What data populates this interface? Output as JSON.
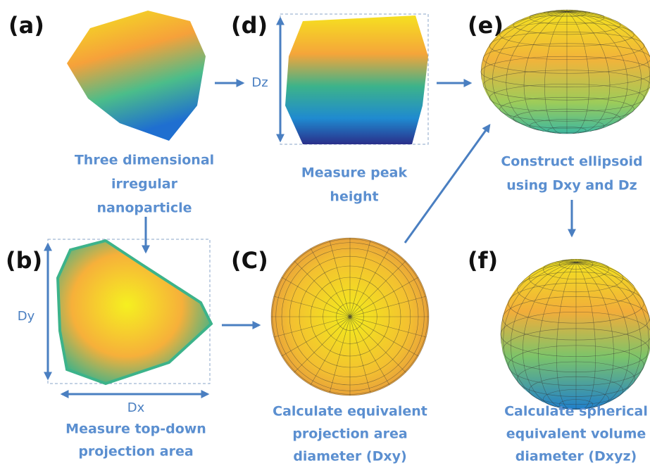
{
  "panels": [
    {
      "label": "(a)",
      "caption": [
        "Three dimensional",
        "irregular",
        "nanoparticle"
      ]
    },
    {
      "label": "(b)",
      "caption": [
        "Measure top-down",
        "projection area"
      ]
    },
    {
      "label": "(C)",
      "caption": [
        "Calculate equivalent",
        "projection area",
        "diameter (Dxy)"
      ]
    },
    {
      "label": "(d)",
      "caption": [
        "Measure peak",
        "height"
      ]
    },
    {
      "label": "(e)",
      "caption": [
        "Construct ellipsoid",
        "using Dxy and Dz"
      ]
    },
    {
      "label": "(f)",
      "caption": [
        "Calculate spherical",
        "equivalent volume",
        "diameter (Dxyz)"
      ]
    }
  ],
  "dimensions": {
    "dz": "Dz",
    "dy": "Dy",
    "dx": "Dx"
  }
}
